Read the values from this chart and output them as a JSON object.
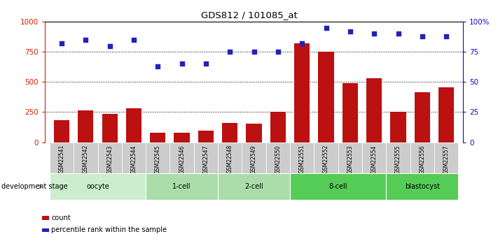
{
  "title": "GDS812 / 101085_at",
  "samples": [
    "GSM22541",
    "GSM22542",
    "GSM22543",
    "GSM22544",
    "GSM22545",
    "GSM22546",
    "GSM22547",
    "GSM22548",
    "GSM22549",
    "GSM22550",
    "GSM22551",
    "GSM22552",
    "GSM22553",
    "GSM22554",
    "GSM22555",
    "GSM22556",
    "GSM22557"
  ],
  "counts": [
    185,
    265,
    235,
    280,
    80,
    80,
    95,
    160,
    155,
    250,
    820,
    750,
    490,
    530,
    250,
    415,
    455
  ],
  "percentiles": [
    82,
    85,
    80,
    85,
    63,
    65,
    65,
    75,
    75,
    75,
    82,
    95,
    92,
    90,
    90,
    88,
    88
  ],
  "bar_color": "#bb1111",
  "dot_color": "#2222bb",
  "left_axis_color": "#cc2200",
  "right_axis_color": "#2200cc",
  "ylim_left": [
    0,
    1000
  ],
  "ylim_right": [
    0,
    100
  ],
  "yticks_left": [
    0,
    250,
    500,
    750,
    1000
  ],
  "yticks_right": [
    0,
    25,
    50,
    75,
    100
  ],
  "ytick_labels_right": [
    "0",
    "25",
    "50",
    "75",
    "100%"
  ],
  "groups": [
    {
      "label": "oocyte",
      "start": 0,
      "end": 3,
      "color": "#cceecc"
    },
    {
      "label": "1-cell",
      "start": 4,
      "end": 6,
      "color": "#aaddaa"
    },
    {
      "label": "2-cell",
      "start": 7,
      "end": 9,
      "color": "#aaddaa"
    },
    {
      "label": "8-cell",
      "start": 10,
      "end": 13,
      "color": "#55cc55"
    },
    {
      "label": "blastocyst",
      "start": 14,
      "end": 16,
      "color": "#55cc55"
    }
  ],
  "xlabel_stage": "development stage",
  "legend_count": "count",
  "legend_percentile": "percentile rank within the sample"
}
